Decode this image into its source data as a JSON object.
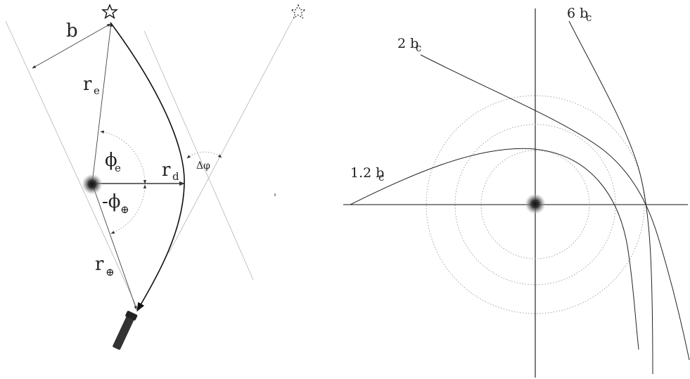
{
  "left_panel": {
    "labels": {
      "b": "b",
      "r_e": "r",
      "r_e_sub": "e",
      "phi_e": "ϕ",
      "phi_e_sub": "e",
      "r_d": "r",
      "r_d_sub": "d",
      "minus_phi_earth": "-ϕ",
      "minus_phi_earth_sub": "⊕",
      "r_earth": "r",
      "r_earth_sub": "⊕",
      "delta_phi": "Δφ"
    },
    "icons": [
      "source-star-icon",
      "apparent-star-icon",
      "lens-cluster-icon",
      "telescope-icon"
    ]
  },
  "right_panel": {
    "curve_labels": [
      {
        "text": "2 b",
        "sub": "c"
      },
      {
        "text": "6 b",
        "sub": "c"
      },
      {
        "text": "1.2 b",
        "sub": "c"
      }
    ],
    "icons": [
      "lens-cluster-icon"
    ]
  }
}
